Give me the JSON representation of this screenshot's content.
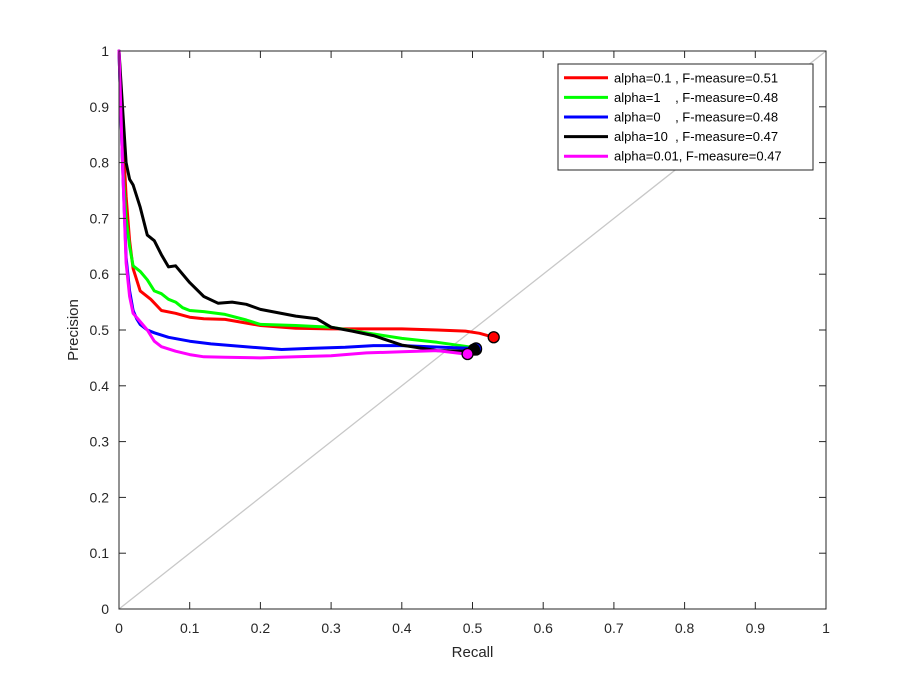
{
  "chart_data": {
    "type": "line",
    "title": "",
    "xlabel": "Recall",
    "ylabel": "Precision",
    "xlim": [
      0,
      1
    ],
    "ylim": [
      0,
      1
    ],
    "xticks": [
      "0",
      "0.1",
      "0.2",
      "0.3",
      "0.4",
      "0.5",
      "0.6",
      "0.7",
      "0.8",
      "0.9",
      "1"
    ],
    "yticks": [
      "0",
      "0.1",
      "0.2",
      "0.3",
      "0.4",
      "0.5",
      "0.6",
      "0.7",
      "0.8",
      "0.9",
      "1"
    ],
    "grid": false,
    "legend_position": "top-right",
    "diagonal": {
      "x": [
        0,
        1
      ],
      "y": [
        0,
        1
      ],
      "color": "#c8c8c8"
    },
    "series": [
      {
        "name": "alpha=0.1 , F-measure=0.51",
        "color": "#ff0000",
        "x": [
          0.0,
          0.005,
          0.01,
          0.015,
          0.02,
          0.03,
          0.045,
          0.06,
          0.08,
          0.1,
          0.12,
          0.15,
          0.2,
          0.25,
          0.3,
          0.35,
          0.4,
          0.45,
          0.49,
          0.51,
          0.53
        ],
        "y": [
          1.0,
          0.86,
          0.74,
          0.66,
          0.61,
          0.57,
          0.555,
          0.535,
          0.53,
          0.523,
          0.52,
          0.519,
          0.508,
          0.503,
          0.502,
          0.502,
          0.502,
          0.5,
          0.498,
          0.494,
          0.487
        ],
        "endpoint": [
          0.53,
          0.487
        ]
      },
      {
        "name": "alpha=1    , F-measure=0.48",
        "color": "#00ff00",
        "x": [
          0.0,
          0.005,
          0.01,
          0.015,
          0.02,
          0.03,
          0.04,
          0.05,
          0.06,
          0.07,
          0.08,
          0.09,
          0.1,
          0.12,
          0.15,
          0.18,
          0.2,
          0.25,
          0.3,
          0.35,
          0.4,
          0.45,
          0.5
        ],
        "y": [
          1.0,
          0.8,
          0.7,
          0.65,
          0.615,
          0.605,
          0.59,
          0.57,
          0.565,
          0.555,
          0.55,
          0.54,
          0.535,
          0.533,
          0.528,
          0.518,
          0.51,
          0.508,
          0.505,
          0.495,
          0.485,
          0.478,
          0.469
        ],
        "endpoint": [
          0.505,
          0.465
        ]
      },
      {
        "name": "alpha=0    , F-measure=0.48",
        "color": "#0000ff",
        "x": [
          0.0,
          0.005,
          0.01,
          0.015,
          0.02,
          0.025,
          0.03,
          0.04,
          0.05,
          0.07,
          0.1,
          0.13,
          0.16,
          0.2,
          0.23,
          0.27,
          0.32,
          0.36,
          0.4,
          0.44,
          0.48,
          0.505
        ],
        "y": [
          1.0,
          0.8,
          0.63,
          0.57,
          0.535,
          0.52,
          0.51,
          0.5,
          0.495,
          0.487,
          0.48,
          0.475,
          0.472,
          0.468,
          0.465,
          0.467,
          0.469,
          0.472,
          0.472,
          0.47,
          0.468,
          0.467
        ],
        "endpoint": [
          0.505,
          0.467
        ]
      },
      {
        "name": "alpha=10  , F-measure=0.47",
        "color": "#000000",
        "x": [
          0.0,
          0.005,
          0.01,
          0.015,
          0.02,
          0.03,
          0.04,
          0.05,
          0.06,
          0.07,
          0.08,
          0.1,
          0.12,
          0.14,
          0.16,
          0.18,
          0.2,
          0.25,
          0.28,
          0.3,
          0.33,
          0.36,
          0.4,
          0.45,
          0.5
        ],
        "y": [
          1.0,
          0.9,
          0.8,
          0.77,
          0.76,
          0.72,
          0.67,
          0.66,
          0.635,
          0.613,
          0.615,
          0.585,
          0.56,
          0.548,
          0.55,
          0.546,
          0.537,
          0.525,
          0.52,
          0.505,
          0.498,
          0.49,
          0.473,
          0.463,
          0.462
        ],
        "endpoint": [
          0.502,
          0.465
        ]
      },
      {
        "name": "alpha=0.01, F-measure=0.47",
        "color": "#ff00ff",
        "x": [
          0.0,
          0.005,
          0.01,
          0.015,
          0.02,
          0.03,
          0.04,
          0.05,
          0.06,
          0.08,
          0.1,
          0.12,
          0.15,
          0.2,
          0.25,
          0.3,
          0.35,
          0.4,
          0.45,
          0.49
        ],
        "y": [
          1.0,
          0.8,
          0.62,
          0.56,
          0.53,
          0.515,
          0.5,
          0.48,
          0.47,
          0.462,
          0.456,
          0.452,
          0.451,
          0.45,
          0.452,
          0.454,
          0.459,
          0.461,
          0.463,
          0.457
        ],
        "endpoint": [
          0.493,
          0.457
        ]
      }
    ]
  }
}
